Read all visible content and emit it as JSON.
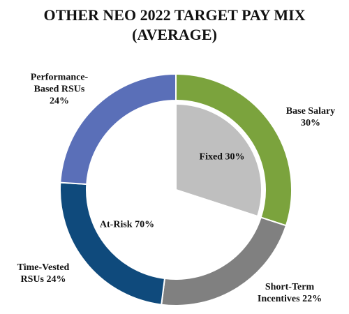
{
  "chart_data": {
    "type": "donut",
    "title": "OTHER NEO 2022 TARGET PAY MIX (AVERAGE)",
    "outer": {
      "categories": [
        "Base Salary",
        "Short-Term Incentives",
        "Time-Vested RSUs",
        "Performance-Based RSUs"
      ],
      "values": [
        30,
        22,
        24,
        24
      ],
      "value_labels": [
        "30%",
        "22%",
        "24%",
        "24%"
      ],
      "colors": [
        "#7ba33d",
        "#808080",
        "#0f4a7c",
        "#5a6fb8"
      ]
    },
    "inner": {
      "categories": [
        "Fixed",
        "At-Risk"
      ],
      "values": [
        30,
        70
      ],
      "value_labels": [
        "30%",
        "70%"
      ],
      "colors": [
        "#bfbfbf",
        "#ffffff"
      ]
    }
  }
}
